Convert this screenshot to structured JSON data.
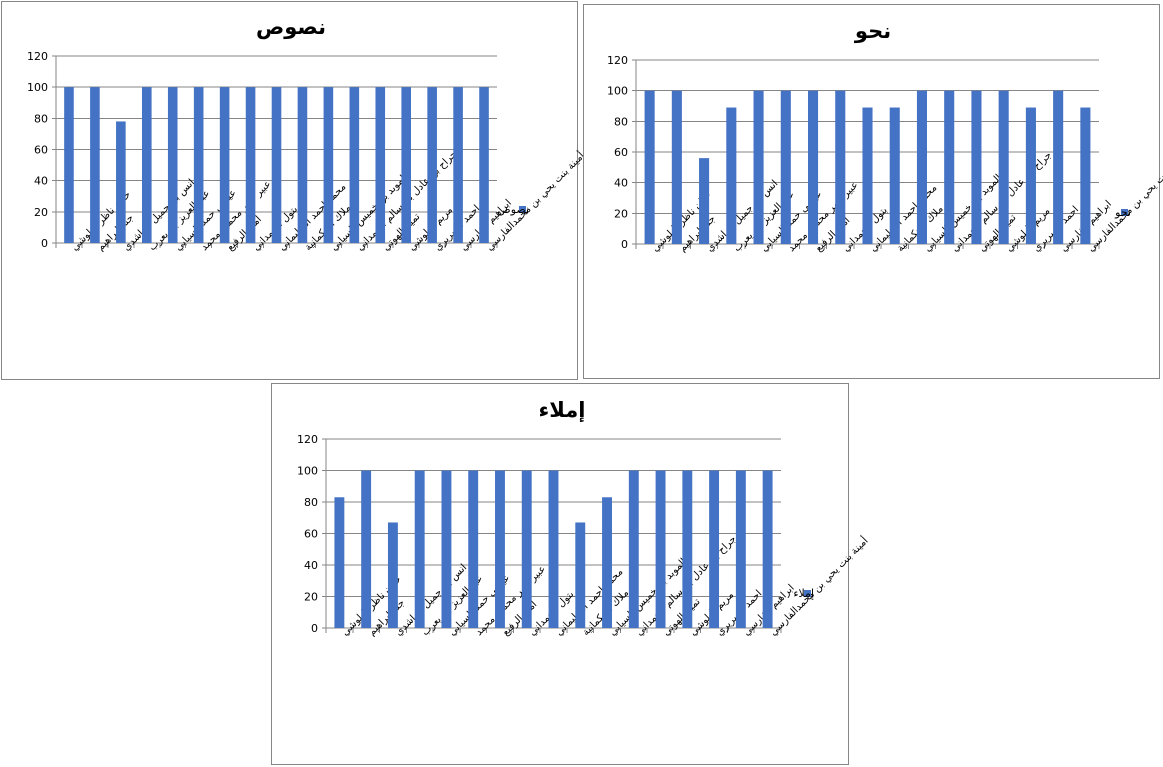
{
  "colors": {
    "bar": "#4472C4",
    "grid": "#868686",
    "border": "#868686"
  },
  "categories": [
    "حنان ناظر البلوشي",
    "جنة ابراهيم",
    "انس بن جميل الراشدي",
    "عبد العزيز بن يعرب",
    "عيسى حمد السيابي",
    "عبير عمر محمود محمد",
    "امنة الرفيع",
    "بتول الحمداني",
    "محمد احمد السليماني",
    "ملاك الحكمانية",
    "الموبد بن خميس السيابي",
    "جراح بن عادل بن سالم الحمداني",
    "تميم الهوتي",
    "مريم البلوشي",
    "احمد السريري",
    "ابراهيم الفارسي",
    "أمينة بنت يحي بن محمدالفارسي"
  ],
  "chart_data": [
    {
      "type": "bar",
      "title": "نصوص",
      "ylim": [
        0,
        120
      ],
      "yticks": [
        0,
        20,
        40,
        60,
        80,
        100,
        120
      ],
      "grid": true,
      "legend": "right",
      "series": [
        {
          "name": "نصوص",
          "values": [
            100,
            100,
            78,
            100,
            100,
            100,
            100,
            100,
            100,
            100,
            100,
            100,
            100,
            100,
            100,
            100,
            100
          ]
        }
      ]
    },
    {
      "type": "bar",
      "title": "نحو",
      "ylim": [
        0,
        120
      ],
      "yticks": [
        0,
        20,
        40,
        60,
        80,
        100,
        120
      ],
      "grid": true,
      "legend": "right",
      "series": [
        {
          "name": "نحو",
          "values": [
            100,
            100,
            56,
            89,
            100,
            100,
            100,
            100,
            89,
            89,
            100,
            100,
            100,
            100,
            89,
            100,
            89
          ]
        }
      ]
    },
    {
      "type": "bar",
      "title": "إملاء",
      "ylim": [
        0,
        120
      ],
      "yticks": [
        0,
        20,
        40,
        60,
        80,
        100,
        120
      ],
      "grid": true,
      "legend": "right",
      "series": [
        {
          "name": "إملاء",
          "values": [
            83,
            100,
            67,
            100,
            100,
            100,
            100,
            100,
            100,
            67,
            83,
            100,
            100,
            100,
            100,
            100,
            100
          ]
        }
      ]
    }
  ]
}
